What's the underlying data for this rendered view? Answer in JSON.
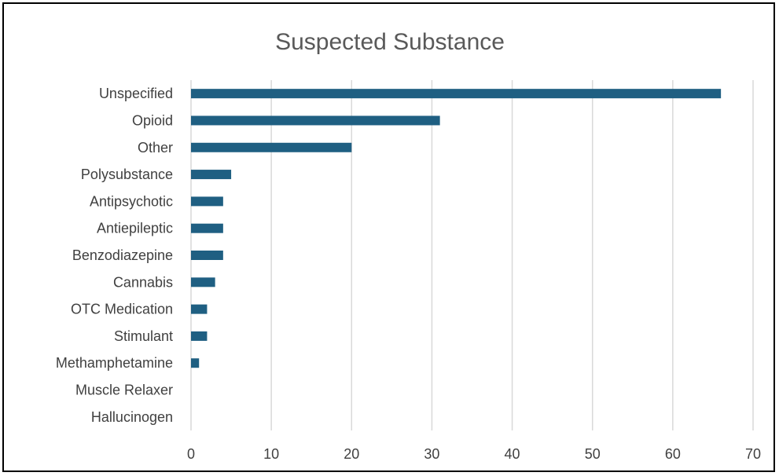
{
  "chart_data": {
    "type": "bar",
    "orientation": "horizontal",
    "title": "Suspected Substance",
    "categories": [
      "Unspecified",
      "Opioid",
      "Other",
      "Polysubstance",
      "Antipsychotic",
      "Antiepileptic",
      "Benzodiazepine",
      "Cannabis",
      "OTC Medication",
      "Stimulant",
      "Methamphetamine",
      "Muscle Relaxer",
      "Hallucinogen"
    ],
    "values": [
      66,
      31,
      20,
      5,
      4,
      4,
      4,
      3,
      2,
      2,
      1,
      0,
      0
    ],
    "xlim": [
      0,
      70
    ],
    "xticks": [
      0,
      10,
      20,
      30,
      40,
      50,
      60,
      70
    ],
    "xlabel": "",
    "ylabel": "",
    "grid": "vertical",
    "legend": "none",
    "bar_color": "#1f5f82",
    "grid_color": "#d9d9d9",
    "text_color": "#404040"
  }
}
